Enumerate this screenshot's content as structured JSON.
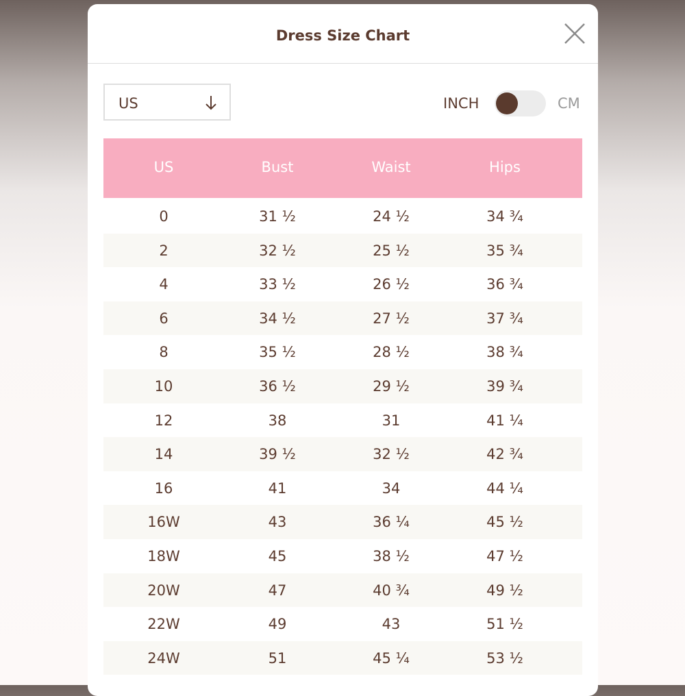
{
  "header": {
    "title": "Dress Size Chart"
  },
  "controls": {
    "region": "US",
    "unit_left": "INCH",
    "unit_right": "CM"
  },
  "table": {
    "columns": [
      "US",
      "Bust",
      "Waist",
      "Hips"
    ],
    "rows": [
      [
        "0",
        "31 ½",
        "24 ½",
        "34 ¾"
      ],
      [
        "2",
        "32 ½",
        "25 ½",
        "35 ¾"
      ],
      [
        "4",
        "33 ½",
        "26 ½",
        "36 ¾"
      ],
      [
        "6",
        "34 ½",
        "27 ½",
        "37 ¾"
      ],
      [
        "8",
        "35 ½",
        "28 ½",
        "38 ¾"
      ],
      [
        "10",
        "36 ½",
        "29 ½",
        "39 ¾"
      ],
      [
        "12",
        "38",
        "31",
        "41 ¼"
      ],
      [
        "14",
        "39 ½",
        "32 ½",
        "42 ¾"
      ],
      [
        "16",
        "41",
        "34",
        "44 ¼"
      ],
      [
        "16W",
        "43",
        "36 ¼",
        "45 ½"
      ],
      [
        "18W",
        "45",
        "38 ½",
        "47 ½"
      ],
      [
        "20W",
        "47",
        "40 ¾",
        "49 ½"
      ],
      [
        "22W",
        "49",
        "43",
        "51 ½"
      ],
      [
        "24W",
        "51",
        "45 ¼",
        "53 ½"
      ]
    ]
  }
}
